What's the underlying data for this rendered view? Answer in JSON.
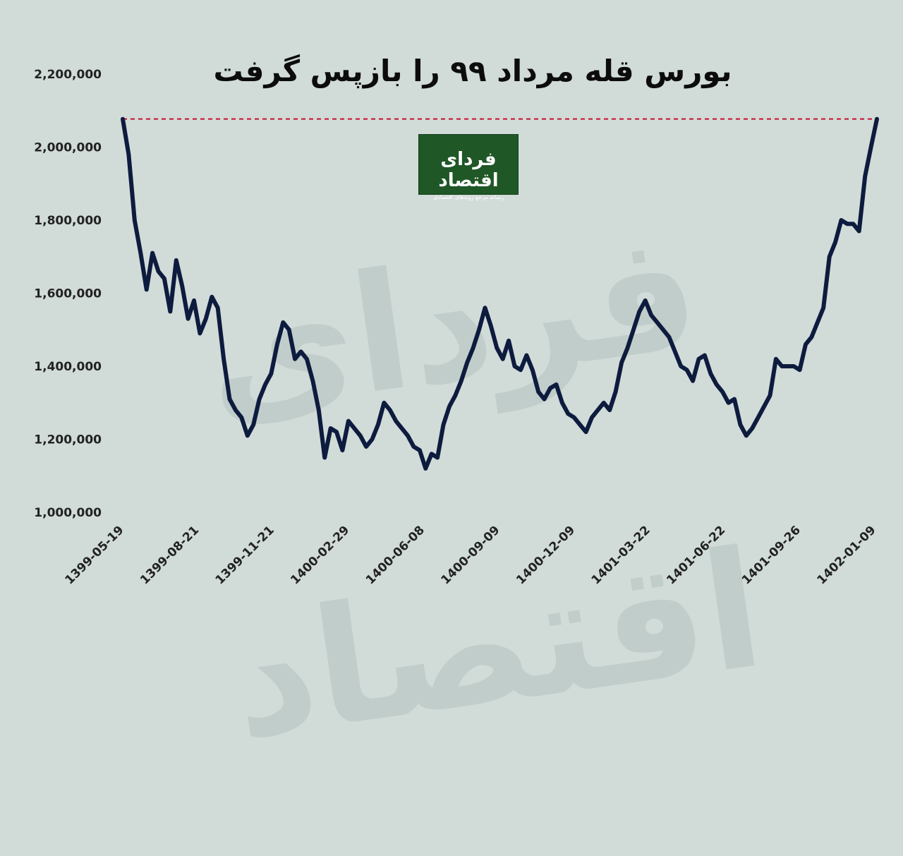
{
  "chart_data": {
    "type": "line",
    "title": "بورس قله مرداد ۹۹ را بازپس گرفت",
    "xlabel": "",
    "ylabel": "",
    "ylim": [
      1000000,
      2200000
    ],
    "yticks": [
      1000000,
      1200000,
      1400000,
      1600000,
      1800000,
      2000000,
      2200000
    ],
    "ytick_labels": [
      "1,000,000",
      "1,200,000",
      "1,400,000",
      "1,600,000",
      "1,800,000",
      "2,000,000",
      "2,200,000"
    ],
    "xtick_labels": [
      "1399-05-19",
      "1399-08-21",
      "1399-11-21",
      "1400-02-29",
      "1400-06-08",
      "1400-09-09",
      "1400-12-09",
      "1401-03-22",
      "1401-06-22",
      "1401-09-26",
      "1402-01-09"
    ],
    "reference_line": {
      "value": 2077000,
      "style": "dashed",
      "color": "#c8102e"
    },
    "grid": false,
    "legend": "none",
    "colors": {
      "line": "#0d1b3e",
      "background": "#d1dbd8",
      "reference": "#c8102e",
      "logo_bg": "#1f5726"
    },
    "series": [
      {
        "values": [
          2077000,
          1980000,
          1800000,
          1710000,
          1610000,
          1710000,
          1660000,
          1640000,
          1550000,
          1690000,
          1620000,
          1530000,
          1580000,
          1490000,
          1530000,
          1590000,
          1560000,
          1420000,
          1310000,
          1280000,
          1260000,
          1210000,
          1240000,
          1310000,
          1350000,
          1380000,
          1460000,
          1520000,
          1500000,
          1420000,
          1440000,
          1420000,
          1360000,
          1280000,
          1150000,
          1230000,
          1220000,
          1170000,
          1250000,
          1230000,
          1210000,
          1180000,
          1200000,
          1240000,
          1300000,
          1280000,
          1250000,
          1230000,
          1210000,
          1180000,
          1170000,
          1120000,
          1160000,
          1150000,
          1240000,
          1290000,
          1320000,
          1360000,
          1410000,
          1450000,
          1500000,
          1560000,
          1510000,
          1450000,
          1420000,
          1470000,
          1400000,
          1390000,
          1430000,
          1390000,
          1330000,
          1310000,
          1340000,
          1350000,
          1300000,
          1270000,
          1260000,
          1240000,
          1220000,
          1260000,
          1280000,
          1300000,
          1280000,
          1330000,
          1410000,
          1450000,
          1500000,
          1550000,
          1580000,
          1540000,
          1520000,
          1500000,
          1480000,
          1440000,
          1400000,
          1390000,
          1360000,
          1420000,
          1430000,
          1380000,
          1350000,
          1330000,
          1300000,
          1310000,
          1240000,
          1210000,
          1230000,
          1260000,
          1290000,
          1320000,
          1420000,
          1400000,
          1400000,
          1400000,
          1390000,
          1460000,
          1480000,
          1520000,
          1560000,
          1700000,
          1740000,
          1800000,
          1790000,
          1790000,
          1770000,
          1920000,
          2000000,
          2077000
        ],
        "note_positions_unused": ""
      }
    ]
  },
  "logo": {
    "name": "فردای اقتصاد",
    "tagline": "رسانه مرجع روندهای اقتصادی"
  }
}
